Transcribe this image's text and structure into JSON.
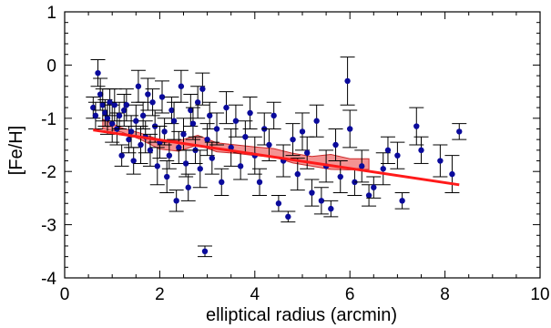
{
  "chart_data": {
    "type": "scatter",
    "xlabel": "elliptical radius (arcmin)",
    "ylabel": "[Fe/H]",
    "xlim": [
      0,
      10
    ],
    "ylim": [
      -4,
      1
    ],
    "x_ticks": [
      "0",
      "2",
      "4",
      "6",
      "8",
      "10"
    ],
    "y_ticks": [
      "1",
      "0",
      "-1",
      "-2",
      "-3",
      "-4"
    ],
    "grid": false,
    "colors": {
      "points": "#0a0a9c",
      "errorbars": "#000000",
      "fit": "#ff1a1a",
      "band_fill": "#f28080",
      "band_edge": "#cc2a2a"
    },
    "points": [
      {
        "x": 0.6,
        "y": -0.8,
        "e": 0.2
      },
      {
        "x": 0.65,
        "y": -0.95,
        "e": 0.25
      },
      {
        "x": 0.7,
        "y": -0.15,
        "e": 0.25
      },
      {
        "x": 0.75,
        "y": -0.55,
        "e": 0.3
      },
      {
        "x": 0.8,
        "y": -0.75,
        "e": 0.3
      },
      {
        "x": 0.85,
        "y": -0.9,
        "e": 0.25
      },
      {
        "x": 0.9,
        "y": -1.0,
        "e": 0.3
      },
      {
        "x": 0.95,
        "y": -0.7,
        "e": 0.25
      },
      {
        "x": 1.0,
        "y": -1.1,
        "e": 0.35
      },
      {
        "x": 1.05,
        "y": -0.75,
        "e": 0.3
      },
      {
        "x": 1.1,
        "y": -1.2,
        "e": 0.3
      },
      {
        "x": 1.15,
        "y": -0.95,
        "e": 0.25
      },
      {
        "x": 1.2,
        "y": -1.7,
        "e": 0.2
      },
      {
        "x": 1.25,
        "y": -0.85,
        "e": 0.3
      },
      {
        "x": 1.3,
        "y": -0.75,
        "e": 0.3
      },
      {
        "x": 1.35,
        "y": -1.4,
        "e": 0.25
      },
      {
        "x": 1.4,
        "y": -1.25,
        "e": 0.3
      },
      {
        "x": 1.45,
        "y": -1.8,
        "e": 0.25
      },
      {
        "x": 1.5,
        "y": -1.05,
        "e": 0.3
      },
      {
        "x": 1.55,
        "y": -0.4,
        "e": 0.3
      },
      {
        "x": 1.6,
        "y": -1.5,
        "e": 0.35
      },
      {
        "x": 1.65,
        "y": -0.95,
        "e": 0.25
      },
      {
        "x": 1.7,
        "y": -1.35,
        "e": 0.3
      },
      {
        "x": 1.75,
        "y": -0.55,
        "e": 0.3
      },
      {
        "x": 1.8,
        "y": -1.6,
        "e": 0.3
      },
      {
        "x": 1.85,
        "y": -0.7,
        "e": 0.25
      },
      {
        "x": 1.9,
        "y": -1.15,
        "e": 0.3
      },
      {
        "x": 1.95,
        "y": -1.9,
        "e": 0.35
      },
      {
        "x": 2.0,
        "y": -1.45,
        "e": 0.3
      },
      {
        "x": 2.05,
        "y": -0.6,
        "e": 0.3
      },
      {
        "x": 2.1,
        "y": -1.25,
        "e": 0.25
      },
      {
        "x": 2.15,
        "y": -2.1,
        "e": 0.3
      },
      {
        "x": 2.2,
        "y": -1.7,
        "e": 0.25
      },
      {
        "x": 2.25,
        "y": -0.85,
        "e": 0.25
      },
      {
        "x": 2.3,
        "y": -1.05,
        "e": 0.35
      },
      {
        "x": 2.35,
        "y": -2.55,
        "e": 0.2
      },
      {
        "x": 2.4,
        "y": -1.55,
        "e": 0.3
      },
      {
        "x": 2.45,
        "y": -0.4,
        "e": 0.3
      },
      {
        "x": 2.5,
        "y": -1.3,
        "e": 0.3
      },
      {
        "x": 2.55,
        "y": -1.85,
        "e": 0.25
      },
      {
        "x": 2.6,
        "y": -2.3,
        "e": 0.25
      },
      {
        "x": 2.65,
        "y": -0.85,
        "e": 0.3
      },
      {
        "x": 2.7,
        "y": -1.1,
        "e": 0.3
      },
      {
        "x": 2.75,
        "y": -1.6,
        "e": 0.25
      },
      {
        "x": 2.8,
        "y": -0.7,
        "e": 0.3
      },
      {
        "x": 2.85,
        "y": -1.95,
        "e": 0.35
      },
      {
        "x": 2.9,
        "y": -0.45,
        "e": 0.3
      },
      {
        "x": 2.95,
        "y": -3.5,
        "e": 0.1
      },
      {
        "x": 3.0,
        "y": -1.4,
        "e": 0.3
      },
      {
        "x": 3.05,
        "y": -0.95,
        "e": 0.25
      },
      {
        "x": 3.1,
        "y": -1.75,
        "e": 0.3
      },
      {
        "x": 3.2,
        "y": -1.2,
        "e": 0.3
      },
      {
        "x": 3.3,
        "y": -2.2,
        "e": 0.25
      },
      {
        "x": 3.4,
        "y": -0.8,
        "e": 0.3
      },
      {
        "x": 3.5,
        "y": -1.55,
        "e": 0.35
      },
      {
        "x": 3.6,
        "y": -1.05,
        "e": 0.3
      },
      {
        "x": 3.7,
        "y": -1.9,
        "e": 0.25
      },
      {
        "x": 3.8,
        "y": -1.35,
        "e": 0.3
      },
      {
        "x": 3.9,
        "y": -0.9,
        "e": 0.3
      },
      {
        "x": 4.0,
        "y": -1.7,
        "e": 0.35
      },
      {
        "x": 4.1,
        "y": -2.2,
        "e": 0.25
      },
      {
        "x": 4.2,
        "y": -1.2,
        "e": 0.3
      },
      {
        "x": 4.3,
        "y": -1.5,
        "e": 0.3
      },
      {
        "x": 4.4,
        "y": -0.95,
        "e": 0.25
      },
      {
        "x": 4.5,
        "y": -2.6,
        "e": 0.15
      },
      {
        "x": 4.6,
        "y": -1.8,
        "e": 0.3
      },
      {
        "x": 4.7,
        "y": -2.85,
        "e": 0.1
      },
      {
        "x": 4.8,
        "y": -1.4,
        "e": 0.3
      },
      {
        "x": 4.9,
        "y": -2.05,
        "e": 0.3
      },
      {
        "x": 5.0,
        "y": -1.25,
        "e": 0.35
      },
      {
        "x": 5.1,
        "y": -1.65,
        "e": 0.3
      },
      {
        "x": 5.2,
        "y": -2.4,
        "e": 0.25
      },
      {
        "x": 5.3,
        "y": -1.05,
        "e": 0.3
      },
      {
        "x": 5.4,
        "y": -2.55,
        "e": 0.25
      },
      {
        "x": 5.5,
        "y": -1.9,
        "e": 0.3
      },
      {
        "x": 5.6,
        "y": -2.7,
        "e": 0.15
      },
      {
        "x": 5.7,
        "y": -1.5,
        "e": 0.3
      },
      {
        "x": 5.8,
        "y": -2.1,
        "e": 0.3
      },
      {
        "x": 5.95,
        "y": -0.3,
        "e": 0.45
      },
      {
        "x": 6.0,
        "y": -1.2,
        "e": 0.35
      },
      {
        "x": 6.1,
        "y": -2.2,
        "e": 0.25
      },
      {
        "x": 6.25,
        "y": -1.9,
        "e": 0.3
      },
      {
        "x": 6.4,
        "y": -2.45,
        "e": 0.2
      },
      {
        "x": 6.5,
        "y": -2.3,
        "e": 0.2
      },
      {
        "x": 6.7,
        "y": -1.95,
        "e": 0.3
      },
      {
        "x": 6.8,
        "y": -1.6,
        "e": 0.25
      },
      {
        "x": 7.0,
        "y": -1.7,
        "e": 0.25
      },
      {
        "x": 7.1,
        "y": -2.55,
        "e": 0.15
      },
      {
        "x": 7.4,
        "y": -1.15,
        "e": 0.35
      },
      {
        "x": 7.5,
        "y": -1.6,
        "e": 0.25
      },
      {
        "x": 7.9,
        "y": -1.8,
        "e": 0.3
      },
      {
        "x": 8.15,
        "y": -2.05,
        "e": 0.35
      },
      {
        "x": 8.3,
        "y": -1.25,
        "e": 0.15
      }
    ],
    "fit": {
      "x": [
        0.6,
        8.3
      ],
      "y": [
        -1.22,
        -2.25
      ]
    },
    "band": {
      "x": [
        0.8,
        1.2,
        1.6,
        2.0,
        2.4,
        2.8,
        3.2,
        3.6,
        4.0,
        4.4,
        4.8,
        5.2,
        5.6,
        6.0,
        6.4
      ],
      "upper": [
        -1.02,
        -1.18,
        -1.28,
        -1.4,
        -1.42,
        -1.32,
        -1.46,
        -1.5,
        -1.54,
        -1.57,
        -1.66,
        -1.72,
        -1.68,
        -1.76,
        -1.76
      ],
      "lower": [
        -1.2,
        -1.26,
        -1.4,
        -1.58,
        -1.62,
        -1.5,
        -1.63,
        -1.66,
        -1.7,
        -1.73,
        -1.84,
        -1.9,
        -1.96,
        -1.97,
        -1.96
      ]
    }
  }
}
